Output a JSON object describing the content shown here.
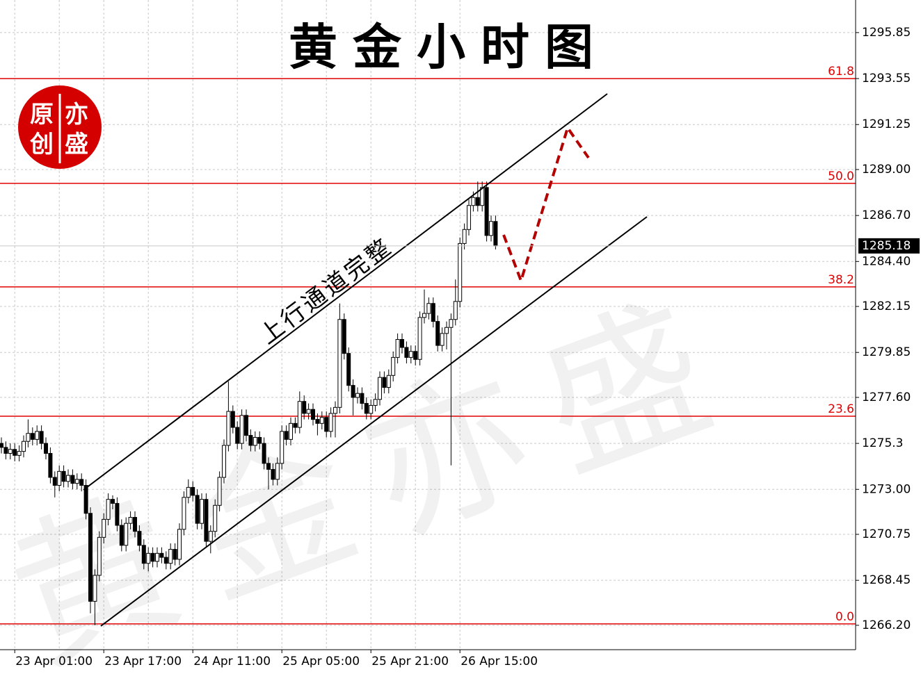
{
  "chart_data": {
    "type": "candlestick",
    "title": "黄金小时图",
    "annotation": "上行通道完整",
    "stamp": [
      "原",
      "亦",
      "创",
      "盛"
    ],
    "watermark": "黄金亦盛",
    "categories": [
      null,
      null,
      null,
      "23 Apr 01:00",
      null,
      null,
      null,
      null,
      null,
      null,
      null,
      null,
      null,
      null,
      null,
      null,
      null,
      null,
      null,
      null,
      null,
      null,
      null,
      "23 Apr 17:00",
      null,
      null,
      null,
      null,
      null,
      null,
      null,
      null,
      null,
      null,
      null,
      null,
      null,
      null,
      null,
      null,
      null,
      null,
      null,
      "24 Apr 11:00",
      null,
      null,
      null,
      null,
      null,
      null,
      null,
      null,
      null,
      null,
      null,
      null,
      null,
      null,
      null,
      null,
      null,
      null,
      null,
      "25 Apr 05:00",
      null,
      null,
      null,
      null,
      null,
      null,
      null,
      null,
      null,
      null,
      null,
      null,
      null,
      null,
      null,
      null,
      null,
      null,
      null,
      "25 Apr 21:00",
      null,
      null,
      null,
      null,
      null,
      null,
      null,
      null,
      null,
      null,
      null,
      null,
      null,
      null,
      null,
      null,
      null,
      null,
      null,
      "26 Apr 15:00",
      null,
      null,
      null,
      null,
      null,
      null,
      null,
      null
    ],
    "open": [
      1275.3,
      1275.1,
      1274.8,
      1275.0,
      1274.7,
      1274.9,
      1275.4,
      1275.8,
      1275.5,
      1275.9,
      1275.3,
      1274.8,
      1273.6,
      1273.2,
      1273.9,
      1273.4,
      1273.7,
      1273.3,
      1273.5,
      1273.2,
      1271.8,
      1267.4,
      1268.7,
      1270.6,
      1271.5,
      1272.5,
      1272.3,
      1271.2,
      1270.2,
      1271.3,
      1271.6,
      1270.9,
      1270.2,
      1269.3,
      1269.8,
      1269.4,
      1269.8,
      1269.6,
      1269.3,
      1270.0,
      1269.5,
      1271.0,
      1272.6,
      1273.1,
      1272.7,
      1271.3,
      1272.5,
      1270.4,
      1270.9,
      1272.2,
      1273.6,
      1275.2,
      1276.9,
      1276.1,
      1275.3,
      1276.7,
      1275.7,
      1275.2,
      1275.6,
      1275.3,
      1274.3,
      1274.0,
      1273.5,
      1274.3,
      1275.9,
      1275.5,
      1276.3,
      1276.1,
      1277.4,
      1276.8,
      1277.0,
      1276.5,
      1276.3,
      1276.6,
      1275.9,
      1276.8,
      1277.1,
      1281.5,
      1279.8,
      1278.2,
      1277.6,
      1277.8,
      1277.3,
      1276.8,
      1277.2,
      1277.5,
      1278.6,
      1278.1,
      1278.7,
      1279.6,
      1280.5,
      1280.1,
      1279.6,
      1279.9,
      1279.5,
      1281.6,
      1281.8,
      1282.3,
      1281.4,
      1280.2,
      1280.8,
      1281.1,
      1281.5,
      1282.4,
      1285.3,
      1286.0,
      1287.2,
      1287.6,
      1287.2,
      1288.1,
      1285.7,
      1286.4
    ],
    "high": [
      1275.6,
      1275.4,
      1275.3,
      1275.3,
      1275.2,
      1275.7,
      1276.5,
      1276.1,
      1276.2,
      1276.2,
      1275.6,
      1275.1,
      1273.9,
      1274.2,
      1274.2,
      1274.0,
      1274.0,
      1273.8,
      1273.8,
      1273.5,
      1272.1,
      1269.0,
      1270.9,
      1271.8,
      1272.8,
      1272.7,
      1272.6,
      1271.5,
      1271.6,
      1271.9,
      1271.9,
      1271.2,
      1270.5,
      1270.1,
      1270.1,
      1270.1,
      1270.1,
      1269.9,
      1270.3,
      1270.3,
      1271.3,
      1272.9,
      1273.5,
      1273.4,
      1273.0,
      1272.8,
      1272.8,
      1271.2,
      1272.5,
      1273.9,
      1275.5,
      1278.4,
      1277.2,
      1276.4,
      1277.0,
      1277.0,
      1276.0,
      1275.9,
      1275.9,
      1275.6,
      1274.6,
      1274.3,
      1274.6,
      1276.2,
      1276.2,
      1276.6,
      1276.6,
      1277.9,
      1277.7,
      1277.3,
      1277.3,
      1276.8,
      1276.9,
      1276.9,
      1277.1,
      1277.4,
      1282.3,
      1281.8,
      1280.1,
      1278.5,
      1278.1,
      1278.1,
      1277.6,
      1277.5,
      1277.8,
      1278.9,
      1278.9,
      1279.0,
      1279.9,
      1280.8,
      1280.8,
      1280.4,
      1280.2,
      1280.2,
      1281.9,
      1283.0,
      1282.6,
      1282.6,
      1281.7,
      1281.1,
      1281.4,
      1281.8,
      1283.5,
      1285.6,
      1286.3,
      1287.5,
      1287.9,
      1288.4,
      1288.4,
      1288.4,
      1286.7,
      1286.7
    ],
    "low": [
      1274.8,
      1274.5,
      1274.5,
      1274.4,
      1274.4,
      1274.6,
      1275.1,
      1275.2,
      1275.2,
      1275.0,
      1274.5,
      1273.3,
      1272.6,
      1272.9,
      1273.1,
      1273.1,
      1273.0,
      1273.0,
      1272.9,
      1271.5,
      1266.8,
      1266.2,
      1268.4,
      1270.3,
      1271.2,
      1272.0,
      1270.9,
      1269.9,
      1269.9,
      1271.0,
      1270.6,
      1269.9,
      1269.0,
      1268.9,
      1269.1,
      1269.1,
      1269.3,
      1269.0,
      1269.0,
      1269.2,
      1269.2,
      1270.7,
      1272.3,
      1272.4,
      1271.0,
      1271.0,
      1270.1,
      1269.8,
      1270.6,
      1271.9,
      1273.3,
      1274.9,
      1275.8,
      1275.0,
      1275.0,
      1275.4,
      1274.9,
      1274.9,
      1275.0,
      1274.0,
      1273.0,
      1273.2,
      1273.2,
      1274.0,
      1275.2,
      1275.2,
      1275.8,
      1275.8,
      1276.5,
      1276.5,
      1276.2,
      1275.7,
      1276.0,
      1275.6,
      1275.6,
      1275.6,
      1276.8,
      1279.5,
      1277.9,
      1276.7,
      1277.3,
      1277.0,
      1276.5,
      1276.5,
      1276.9,
      1277.2,
      1277.8,
      1277.8,
      1278.4,
      1279.3,
      1279.8,
      1279.3,
      1279.3,
      1279.2,
      1279.2,
      1281.3,
      1281.5,
      1281.1,
      1279.9,
      1279.9,
      1280.0,
      1274.2,
      1281.2,
      1282.1,
      1285.0,
      1285.7,
      1286.9,
      1286.9,
      1286.9,
      1285.4,
      1285.4,
      1285.0
    ],
    "close": [
      1275.1,
      1274.8,
      1275.0,
      1274.7,
      1274.9,
      1275.4,
      1275.8,
      1275.5,
      1275.9,
      1275.3,
      1274.8,
      1273.6,
      1273.2,
      1273.9,
      1273.4,
      1273.7,
      1273.3,
      1273.5,
      1273.2,
      1271.8,
      1267.4,
      1268.7,
      1270.6,
      1271.5,
      1272.5,
      1272.3,
      1271.2,
      1270.2,
      1271.3,
      1271.6,
      1270.9,
      1270.2,
      1269.3,
      1269.8,
      1269.4,
      1269.8,
      1269.6,
      1269.3,
      1270.0,
      1269.5,
      1271.0,
      1272.6,
      1273.1,
      1272.7,
      1271.3,
      1272.5,
      1270.4,
      1270.9,
      1272.2,
      1273.6,
      1275.2,
      1276.9,
      1276.1,
      1275.3,
      1276.7,
      1275.7,
      1275.2,
      1275.6,
      1275.3,
      1274.3,
      1274.0,
      1273.5,
      1274.3,
      1275.9,
      1275.5,
      1276.3,
      1276.1,
      1277.4,
      1276.8,
      1277.0,
      1276.5,
      1276.3,
      1276.6,
      1275.9,
      1276.8,
      1277.1,
      1281.5,
      1279.8,
      1278.2,
      1277.6,
      1277.8,
      1277.3,
      1276.8,
      1277.2,
      1277.5,
      1278.6,
      1278.1,
      1278.7,
      1279.6,
      1280.5,
      1280.1,
      1279.6,
      1279.9,
      1279.5,
      1281.6,
      1281.8,
      1282.3,
      1281.4,
      1280.2,
      1280.8,
      1281.1,
      1281.5,
      1282.4,
      1285.3,
      1286.0,
      1287.2,
      1287.6,
      1287.2,
      1288.1,
      1285.7,
      1286.4,
      1285.18
    ],
    "up_color": "#ffffff",
    "down_color": "#000000",
    "ylim": [
      1264.98,
      1297.48
    ],
    "yticks": [
      {
        "value": 1266.2,
        "label": "1266.20"
      },
      1268.45,
      1270.75,
      {
        "value": 1273,
        "label": "1273.00"
      },
      1275.3,
      {
        "value": 1277.6,
        "label": "1277.60"
      },
      1279.85,
      1282.15,
      {
        "value": 1284.4,
        "label": "1284.40"
      },
      {
        "value": 1286.7,
        "label": "1286.70"
      },
      {
        "value": 1289,
        "label": "1289.00"
      },
      1291.25,
      1293.55,
      1295.85
    ],
    "grid": true,
    "levels": [
      {
        "name": "61.8",
        "price": 1293.55
      },
      {
        "name": "50.0",
        "price": 1288.31
      },
      {
        "name": "38.2",
        "price": 1283.13
      },
      {
        "name": "23.6",
        "price": 1276.66
      },
      {
        "name": "0.0",
        "price": 1266.27
      }
    ],
    "level_color": "#e00000"
  }
}
